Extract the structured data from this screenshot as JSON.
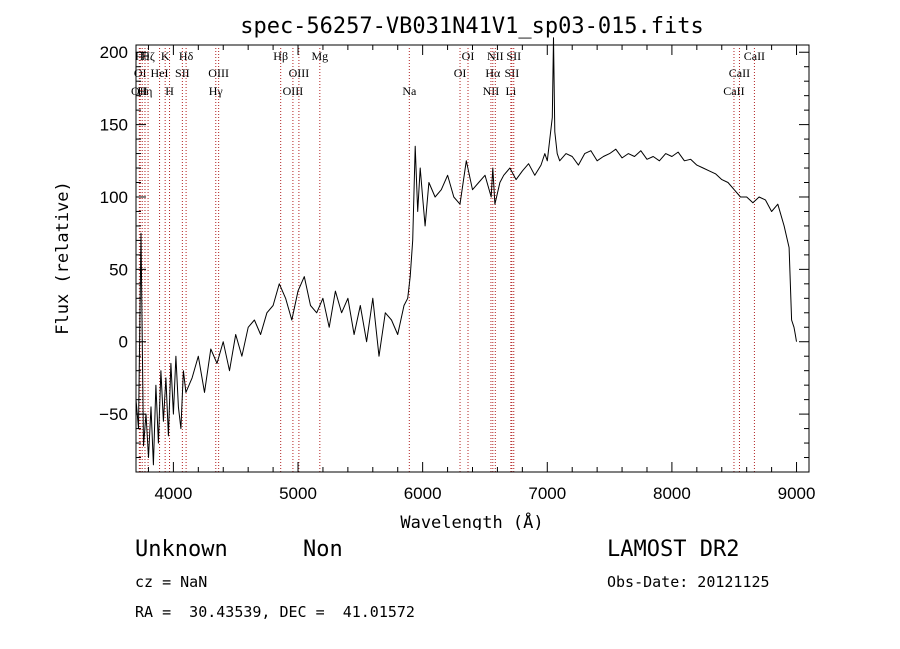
{
  "chart_data": {
    "type": "line",
    "title": "spec-56257-VB031N41V1_sp03-015.fits",
    "xlabel": "Wavelength (Å)",
    "ylabel": "Flux (relative)",
    "xlim": [
      3700,
      9100
    ],
    "ylim": [
      -90,
      205
    ],
    "xticks": [
      4000,
      5000,
      6000,
      7000,
      8000,
      9000
    ],
    "yticks": [
      -50,
      0,
      50,
      100,
      150,
      200
    ],
    "grid": false,
    "series": [
      {
        "x": [
          3700,
          3720,
          3740,
          3760,
          3780,
          3800,
          3820,
          3840,
          3860,
          3880,
          3900,
          3920,
          3940,
          3960,
          3980,
          4000,
          4020,
          4040,
          4060,
          4080,
          4100,
          4150,
          4200,
          4250,
          4300,
          4350,
          4400,
          4450,
          4500,
          4550,
          4600,
          4650,
          4700,
          4750,
          4800,
          4850,
          4900,
          4950,
          5000,
          5050,
          5100,
          5150,
          5200,
          5250,
          5300,
          5350,
          5400,
          5450,
          5500,
          5550,
          5600,
          5650,
          5700,
          5750,
          5800,
          5850,
          5880,
          5900,
          5920,
          5940,
          5960,
          5980,
          6000,
          6020,
          6050,
          6100,
          6150,
          6200,
          6250,
          6300,
          6350,
          6400,
          6450,
          6500,
          6550,
          6563,
          6580,
          6620,
          6650,
          6700,
          6750,
          6800,
          6850,
          6900,
          6950,
          6980,
          7000,
          7020,
          7040,
          7050,
          7060,
          7080,
          7100,
          7150,
          7200,
          7250,
          7300,
          7350,
          7400,
          7450,
          7500,
          7550,
          7600,
          7650,
          7700,
          7750,
          7800,
          7850,
          7900,
          7950,
          8000,
          8050,
          8100,
          8150,
          8200,
          8250,
          8300,
          8350,
          8400,
          8450,
          8500,
          8550,
          8600,
          8650,
          8700,
          8750,
          8800,
          8850,
          8900,
          8940,
          8960,
          8980,
          8990,
          9000
        ],
        "y": [
          -40,
          -60,
          75,
          -72,
          -50,
          -80,
          -45,
          -85,
          -30,
          -70,
          -20,
          -55,
          -25,
          -65,
          -15,
          -50,
          -10,
          -45,
          -60,
          -20,
          -35,
          -25,
          -10,
          -35,
          -5,
          -15,
          0,
          -20,
          5,
          -10,
          10,
          15,
          5,
          20,
          25,
          40,
          30,
          15,
          35,
          45,
          25,
          20,
          30,
          10,
          35,
          20,
          30,
          5,
          25,
          0,
          30,
          -10,
          20,
          15,
          5,
          25,
          30,
          45,
          70,
          135,
          90,
          120,
          100,
          80,
          110,
          100,
          105,
          115,
          100,
          95,
          125,
          105,
          110,
          115,
          100,
          120,
          95,
          110,
          115,
          120,
          112,
          118,
          123,
          115,
          122,
          130,
          125,
          140,
          155,
          210,
          145,
          130,
          125,
          130,
          128,
          122,
          130,
          132,
          125,
          128,
          130,
          133,
          127,
          130,
          128,
          132,
          126,
          128,
          125,
          130,
          128,
          131,
          125,
          126,
          122,
          120,
          118,
          116,
          112,
          110,
          105,
          100,
          100,
          96,
          100,
          98,
          90,
          95,
          80,
          65,
          15,
          10,
          5,
          0
        ]
      }
    ],
    "line_markers": [
      {
        "x": 3727,
        "label": "OII",
        "row": 2
      },
      {
        "x": 3734,
        "label": "OI",
        "row": 1
      },
      {
        "x": 3750,
        "label": "Hθ",
        "row": 0
      },
      {
        "x": 3772,
        "label": "Hη",
        "row": 2
      },
      {
        "x": 3797,
        "label": "Hζ",
        "row": 0
      },
      {
        "x": 3889,
        "label": "HeI",
        "row": 1
      },
      {
        "x": 3934,
        "label": "K",
        "row": 0
      },
      {
        "x": 3969,
        "label": "H",
        "row": 2
      },
      {
        "x": 4072,
        "label": "SII",
        "row": 1
      },
      {
        "x": 4102,
        "label": "Hδ",
        "row": 0
      },
      {
        "x": 4340,
        "label": "Hγ",
        "row": 2
      },
      {
        "x": 4363,
        "label": "OIII",
        "row": 1
      },
      {
        "x": 4861,
        "label": "Hβ",
        "row": 0
      },
      {
        "x": 4959,
        "label": "OIII",
        "row": 2
      },
      {
        "x": 5007,
        "label": "OIII",
        "row": 1
      },
      {
        "x": 5175,
        "label": "Mg",
        "row": 0
      },
      {
        "x": 5893,
        "label": "Na",
        "row": 2
      },
      {
        "x": 6300,
        "label": "OI",
        "row": 1
      },
      {
        "x": 6364,
        "label": "OI",
        "row": 0
      },
      {
        "x": 6548,
        "label": "NII",
        "row": 2
      },
      {
        "x": 6563,
        "label": "Hα",
        "row": 1
      },
      {
        "x": 6583,
        "label": "NII",
        "row": 0
      },
      {
        "x": 6708,
        "label": "Li",
        "row": 2
      },
      {
        "x": 6716,
        "label": "SII",
        "row": 1
      },
      {
        "x": 6731,
        "label": "SII",
        "row": 0
      },
      {
        "x": 8498,
        "label": "CaII",
        "row": 2
      },
      {
        "x": 8542,
        "label": "CaII",
        "row": 1
      },
      {
        "x": 8662,
        "label": "CaII",
        "row": 0
      }
    ]
  },
  "info": {
    "object_class": "Unknown",
    "subclass": "Non",
    "survey": "LAMOST DR2",
    "redshift": "cz = NaN",
    "obs_date": "Obs-Date: 20121125",
    "coords": "RA =  30.43539, DEC =  41.01572"
  },
  "colors": {
    "spectrum": "#000000",
    "marker_line": "#b22222",
    "background": "#ffffff"
  }
}
